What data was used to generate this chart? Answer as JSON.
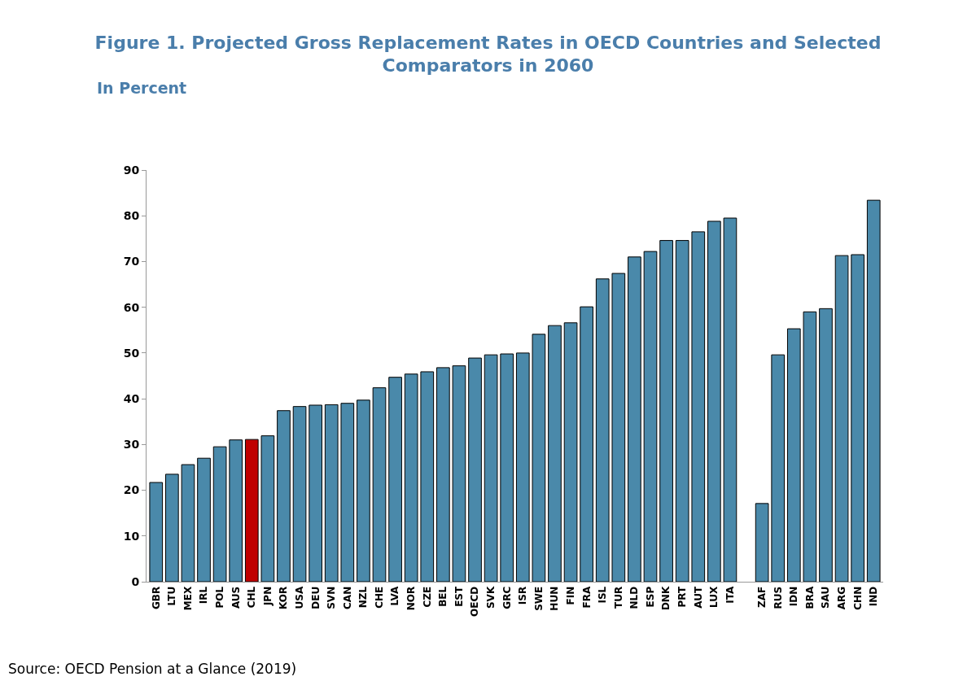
{
  "chart_data": {
    "type": "bar",
    "title": "Figure 1. Projected Gross Replacement Rates in OECD Countries and Selected Comparators in 2060",
    "subtitle": "In Percent",
    "categories": [
      "GBR",
      "LTU",
      "MEX",
      "IRL",
      "POL",
      "AUS",
      "CHL",
      "JPN",
      "KOR",
      "USA",
      "DEU",
      "SVN",
      "CAN",
      "NZL",
      "CHE",
      "LVA",
      "NOR",
      "CZE",
      "BEL",
      "EST",
      "OECD",
      "SVK",
      "GRC",
      "ISR",
      "SWE",
      "HUN",
      "FIN",
      "FRA",
      "ISL",
      "TUR",
      "NLD",
      "ESP",
      "DNK",
      "PRT",
      "AUT",
      "LUX",
      "ITA",
      null,
      "ZAF",
      "RUS",
      "IDN",
      "BRA",
      "SAU",
      "ARG",
      "CHN",
      "IND"
    ],
    "values": [
      21.7,
      23.5,
      25.6,
      27.0,
      29.5,
      31.0,
      31.1,
      31.9,
      37.4,
      38.3,
      38.6,
      38.7,
      39.0,
      39.7,
      42.4,
      44.7,
      45.4,
      45.9,
      46.8,
      47.2,
      48.9,
      49.6,
      49.8,
      50.0,
      54.1,
      56.0,
      56.6,
      60.1,
      66.2,
      67.4,
      71.0,
      72.2,
      74.6,
      74.6,
      76.5,
      78.8,
      79.5,
      null,
      17.1,
      49.6,
      55.3,
      59.0,
      59.7,
      71.3,
      71.5,
      83.4
    ],
    "colors": [
      "#4a89aa",
      "#4a89aa",
      "#4a89aa",
      "#4a89aa",
      "#4a89aa",
      "#4a89aa",
      "#c00000",
      "#4a89aa",
      "#4a89aa",
      "#4a89aa",
      "#4a89aa",
      "#4a89aa",
      "#4a89aa",
      "#4a89aa",
      "#4a89aa",
      "#4a89aa",
      "#4a89aa",
      "#4a89aa",
      "#4a89aa",
      "#4a89aa",
      "#4a89aa",
      "#4a89aa",
      "#4a89aa",
      "#4a89aa",
      "#4a89aa",
      "#4a89aa",
      "#4a89aa",
      "#4a89aa",
      "#4a89aa",
      "#4a89aa",
      "#4a89aa",
      "#4a89aa",
      "#4a89aa",
      "#4a89aa",
      "#4a89aa",
      "#4a89aa",
      "#4a89aa",
      "#4a89aa",
      "#4a89aa",
      "#4a89aa",
      "#4a89aa",
      "#4a89aa",
      "#4a89aa",
      "#4a89aa",
      "#4a89aa",
      "#4a89aa"
    ],
    "ylim": [
      0,
      90
    ],
    "yticks": [
      0,
      10,
      20,
      30,
      40,
      50,
      60,
      70,
      80,
      90
    ],
    "annotations": [
      "Source: OECD Pension at a Glance (2019)"
    ]
  }
}
